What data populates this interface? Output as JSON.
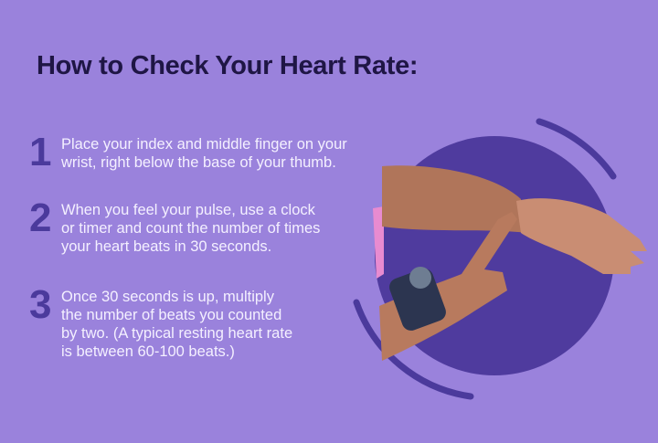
{
  "title": "How to Check Your Heart Rate:",
  "steps": [
    {
      "number": "1",
      "lines": [
        "Place your index and middle finger on your",
        "wrist, right below the base of your thumb."
      ]
    },
    {
      "number": "2",
      "lines": [
        "When you feel your pulse, use a clock",
        "or timer and count the number of times",
        "your heart beats in 30 seconds."
      ]
    },
    {
      "number": "3",
      "lines": [
        "Once 30 seconds is up, multiply",
        "the number of beats you counted",
        "by two. (A typical resting heart rate",
        "is between 60-100 beats.)"
      ]
    }
  ],
  "colors": {
    "background": "#9a82dc",
    "title": "#1f1645",
    "accent": "#4b3a9c",
    "text": "#f4f0ff"
  },
  "image": "hand-checking-wrist-pulse"
}
